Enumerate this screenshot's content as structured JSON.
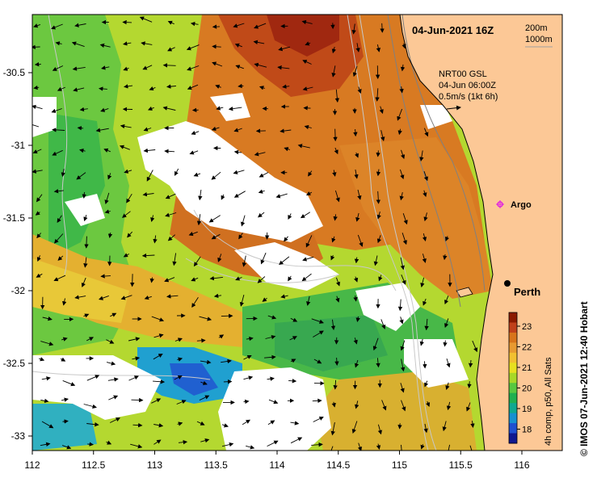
{
  "header": {
    "title": "04-Jun-2021 16Z",
    "isobath_labels": [
      "200m",
      "1000m"
    ]
  },
  "current_legend": {
    "line1": "NRT00 GSL",
    "line2": "04-Jun 06:00Z",
    "line3": "0.5m/s (1kt 6h)"
  },
  "axes": {
    "x_ticks": [
      "112",
      "112.5",
      "113",
      "113.5",
      "114",
      "114.5",
      "115",
      "115.5",
      "116"
    ],
    "y_ticks": [
      "-30.5",
      "-31",
      "-31.5",
      "-32",
      "-32.5",
      "-33"
    ]
  },
  "places": {
    "argo": "Argo",
    "city": "Perth"
  },
  "colorbar": {
    "title": "4h comp, p50, All Sats",
    "ticks": [
      "23",
      "22",
      "21",
      "20",
      "19",
      "18"
    ],
    "colors": [
      "#8b1a00",
      "#c0401a",
      "#d8741a",
      "#e89a30",
      "#f2c030",
      "#e8e020",
      "#a8d828",
      "#58c840",
      "#20b050",
      "#10a890",
      "#1890d0",
      "#2050d0",
      "#101890"
    ]
  },
  "credit": "© IMOS 07-Jun-2021 12:40 Hobart",
  "colors": {
    "land": "#fcc896",
    "cloud": "#ffffff",
    "isobath": "#c8c8c8"
  }
}
